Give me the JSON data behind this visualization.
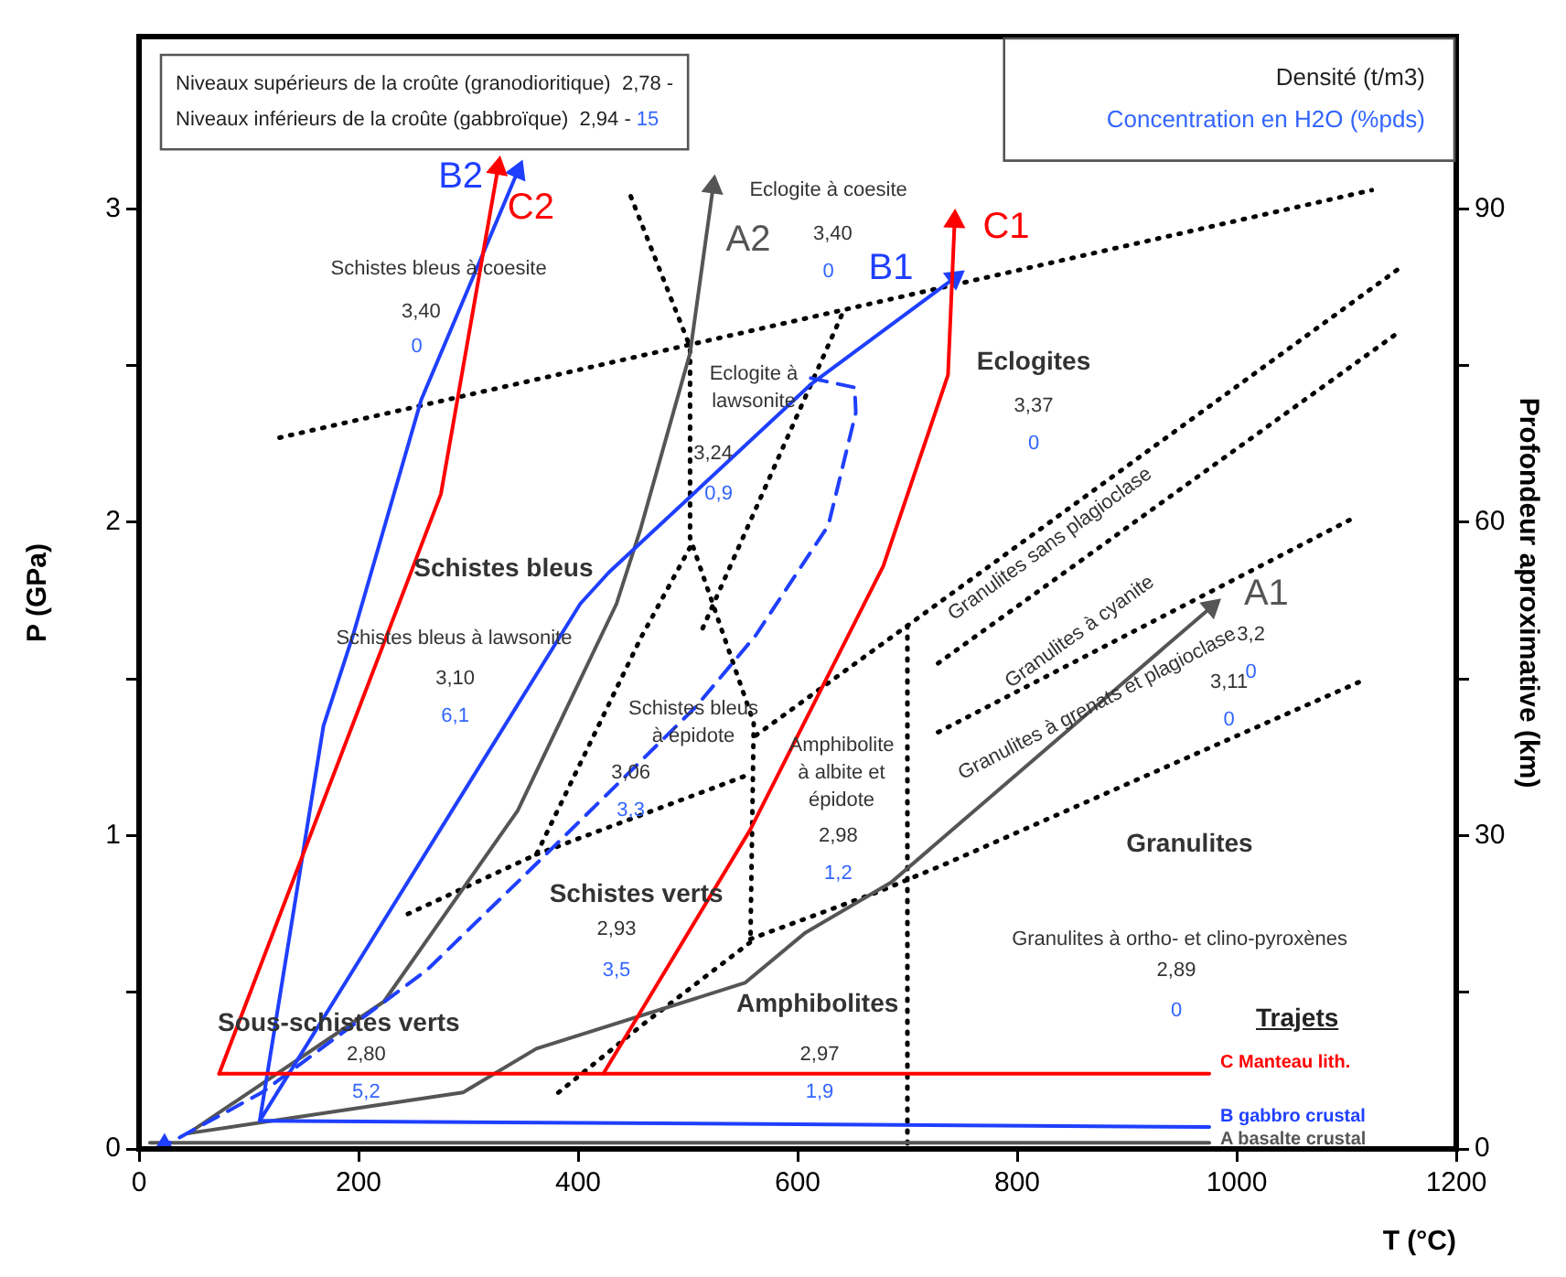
{
  "chart_data": {
    "type": "line",
    "xlabel": "T (°C)",
    "ylabel": "P (GPa)",
    "y2label": "Profondeur aproximative (km)",
    "xlim": [
      0,
      1200
    ],
    "xticks": [
      0,
      200,
      400,
      600,
      800,
      1000,
      1200
    ],
    "ylim": [
      0,
      3.55
    ],
    "yticks": [
      0,
      {
        "value": 0.5,
        "label": null
      },
      1,
      {
        "value": 1.5,
        "label": null
      },
      2,
      {
        "value": 2.5,
        "label": null
      },
      3
    ],
    "y2lim": [
      0,
      106.5
    ],
    "y2ticks": [
      0,
      {
        "value": 15,
        "label": null
      },
      30,
      {
        "value": 45,
        "label": null
      },
      60,
      {
        "value": 75,
        "label": null
      },
      90
    ],
    "grid": false,
    "legend": false,
    "marker": "none",
    "series": [
      {
        "name": "C Manteau lith.",
        "color": "#ff0000",
        "x": [
          73,
          975
        ],
        "values": [
          0.24,
          0.24
        ]
      },
      {
        "color": "#ff0000",
        "x": [
          73,
          275,
          327
        ],
        "values": [
          0.24,
          2.09,
          3.13
        ]
      },
      {
        "color": "#ff0000",
        "x": [
          423,
          557,
          678,
          737,
          743
        ],
        "values": [
          0.24,
          1.02,
          1.86,
          2.47,
          2.96
        ]
      },
      {
        "name": "B gabbro crustal",
        "color": "#1f3fff",
        "x": [
          110,
          975
        ],
        "values": [
          0.09,
          0.07
        ]
      },
      {
        "color": "#1f3fff",
        "x": [
          110,
          168,
          195,
          257,
          345
        ],
        "values": [
          0.09,
          1.35,
          1.64,
          2.39,
          3.12
        ]
      },
      {
        "color": "#1f3fff",
        "x": [
          110,
          402,
          428,
          612,
          743
        ],
        "values": [
          0.09,
          1.74,
          1.84,
          2.44,
          2.78
        ]
      },
      {
        "color": "#1f3fff",
        "line_style": "dashed",
        "x": [
          612,
          652,
          653,
          628,
          562,
          507,
          452,
          362,
          262,
          112,
          23
        ],
        "values": [
          2.46,
          2.43,
          2.35,
          1.99,
          1.64,
          1.41,
          1.22,
          0.91,
          0.57,
          0.18,
          0.01
        ]
      },
      {
        "name": "A basalte crustal",
        "color": "#555555",
        "x": [
          10,
          975
        ],
        "values": [
          0.02,
          0.02
        ]
      },
      {
        "color": "#555555",
        "x": [
          45,
          223,
          345,
          435,
          457,
          502,
          523
        ],
        "values": [
          0.05,
          0.47,
          1.08,
          1.74,
          1.98,
          2.54,
          3.07
        ]
      },
      {
        "color": "#555555",
        "x": [
          45,
          295,
          362,
          552,
          607,
          685,
          977
        ],
        "values": [
          0.05,
          0.18,
          0.32,
          0.53,
          0.69,
          0.85,
          1.73
        ]
      },
      {
        "color": "#000000",
        "line_style": "dotted",
        "x": [
          448,
          502,
          502,
          560,
          557,
          460,
          382
        ],
        "values": [
          3.04,
          2.56,
          1.95,
          1.36,
          0.66,
          0.4,
          0.18
        ]
      },
      {
        "color": "#000000",
        "line_style": "dotted",
        "x": [
          245,
          362,
          457,
          502
        ],
        "values": [
          0.75,
          0.94,
          1.63,
          1.92
        ]
      },
      {
        "color": "#000000",
        "line_style": "dotted",
        "x": [
          562,
          700,
          1148
        ],
        "values": [
          1.32,
          1.67,
          2.81
        ]
      },
      {
        "color": "#000000",
        "line_style": "dotted",
        "x": [
          700,
          700
        ],
        "values": [
          1.67,
          0
        ]
      },
      {
        "color": "#000000",
        "line_style": "dotted",
        "x": [
          128,
          1123
        ],
        "values": [
          2.27,
          3.06
        ]
      },
      {
        "color": "#000000",
        "line_style": "dotted",
        "x": [
          362,
          552
        ],
        "values": [
          0.94,
          1.19
        ]
      },
      {
        "color": "#000000",
        "line_style": "dotted",
        "x": [
          557,
          673,
          735,
          1118
        ],
        "values": [
          0.67,
          0.82,
          0.91,
          1.5
        ]
      },
      {
        "color": "#000000",
        "line_style": "dotted",
        "x": [
          728,
          1145
        ],
        "values": [
          1.55,
          2.6
        ]
      },
      {
        "color": "#000000",
        "line_style": "dotted",
        "x": [
          728,
          1110
        ],
        "values": [
          1.33,
          2.02
        ]
      },
      {
        "color": "#000000",
        "line_style": "dotted",
        "x": [
          640,
          512
        ],
        "values": [
          2.66,
          1.65
        ]
      }
    ],
    "annotations": [
      "Niveaux supérieurs de la croûte (granodioritique)  2,78 -",
      "Niveaux inférieurs de la croûte (gabbroïque)  2,94 - ",
      "15",
      "Densité (t/m3)",
      "Concentration en H2O (%pds)",
      "C2",
      "B2",
      "A2",
      "C1",
      "B1",
      "A1",
      "Schistes bleus à coesite",
      "3,40",
      "0",
      "Eclogite à coesite",
      "3,40",
      "0",
      "Eclogite à\nlawsonite",
      "3,24",
      "0,9",
      "Eclogites",
      "3,37",
      "0",
      "Schistes bleus",
      "Schistes bleus à lawsonite",
      "3,10",
      "6,1",
      "Schistes bleus\nà épidote",
      "3,06",
      "3,3",
      "Amphibolite\nà albite et\népidote",
      "2,98",
      "1,2",
      "Schistes verts",
      "2,93",
      "3,5",
      "Sous-schistes verts",
      "2,80",
      "5,2",
      "Amphibolites",
      "2,97",
      "1,9",
      "Granulites sans plagioclase",
      "Granulites à cyanite",
      "Granulites à grenats et plagioclase",
      "3,2",
      "0",
      "3,11",
      "0",
      "Granulites",
      "Granulites à ortho- et clino-pyroxènes",
      "2,89",
      "0",
      "Trajets"
    ]
  }
}
